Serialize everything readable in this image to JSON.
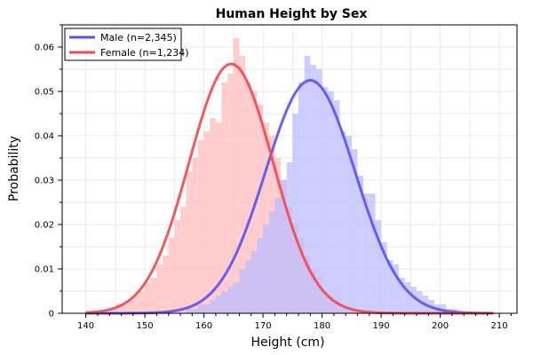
{
  "chart_data": {
    "type": "bar",
    "title": "Human Height by Sex",
    "xlabel": "Height (cm)",
    "ylabel": "Probability",
    "xlim": [
      136,
      213
    ],
    "ylim": [
      0,
      0.065
    ],
    "x_ticks": [
      140,
      150,
      160,
      170,
      180,
      190,
      200,
      210
    ],
    "y_ticks": [
      0,
      0.01,
      0.02,
      0.03,
      0.04,
      0.05,
      0.06
    ],
    "grid": true,
    "legend_position": "top-left",
    "bin_width": 1,
    "series": [
      {
        "name": "Male (n=2,345)",
        "color": "#5a50f2",
        "fill": "#bcbcff",
        "fit": {
          "type": "normal",
          "mean": 178,
          "sd": 7.6
        },
        "bins": [
          [
            157,
            0.001
          ],
          [
            158,
            0.001
          ],
          [
            159,
            0.002
          ],
          [
            160,
            0.002
          ],
          [
            161,
            0.003
          ],
          [
            162,
            0.004
          ],
          [
            163,
            0.005
          ],
          [
            164,
            0.006
          ],
          [
            165,
            0.007
          ],
          [
            166,
            0.01
          ],
          [
            167,
            0.012
          ],
          [
            168,
            0.014
          ],
          [
            169,
            0.017
          ],
          [
            170,
            0.02
          ],
          [
            171,
            0.023
          ],
          [
            172,
            0.026
          ],
          [
            173,
            0.03
          ],
          [
            174,
            0.034
          ],
          [
            175,
            0.045
          ],
          [
            176,
            0.052
          ],
          [
            177,
            0.058
          ],
          [
            178,
            0.056
          ],
          [
            179,
            0.055
          ],
          [
            180,
            0.051
          ],
          [
            181,
            0.05
          ],
          [
            182,
            0.048
          ],
          [
            183,
            0.041
          ],
          [
            184,
            0.04
          ],
          [
            185,
            0.037
          ],
          [
            186,
            0.031
          ],
          [
            187,
            0.027
          ],
          [
            188,
            0.027
          ],
          [
            189,
            0.021
          ],
          [
            190,
            0.016
          ],
          [
            191,
            0.012
          ],
          [
            192,
            0.011
          ],
          [
            193,
            0.008
          ],
          [
            194,
            0.007
          ],
          [
            195,
            0.006
          ],
          [
            196,
            0.005
          ],
          [
            197,
            0.004
          ],
          [
            198,
            0.003
          ],
          [
            199,
            0.002
          ],
          [
            200,
            0.002
          ],
          [
            201,
            0.001
          ],
          [
            202,
            0.001
          ]
        ]
      },
      {
        "name": "Female (n=1,234)",
        "color": "#f0484e",
        "fill": "#ffbcbc",
        "fit": {
          "type": "normal",
          "mean": 164.6,
          "sd": 7.1
        },
        "bins": [
          [
            144,
            0.001
          ],
          [
            145,
            0.002
          ],
          [
            146,
            0.002
          ],
          [
            147,
            0.003
          ],
          [
            148,
            0.004
          ],
          [
            149,
            0.005
          ],
          [
            150,
            0.007
          ],
          [
            151,
            0.008
          ],
          [
            152,
            0.011
          ],
          [
            153,
            0.013
          ],
          [
            154,
            0.017
          ],
          [
            155,
            0.021
          ],
          [
            156,
            0.024
          ],
          [
            157,
            0.032
          ],
          [
            158,
            0.035
          ],
          [
            159,
            0.039
          ],
          [
            160,
            0.041
          ],
          [
            161,
            0.044
          ],
          [
            162,
            0.043
          ],
          [
            163,
            0.052
          ],
          [
            164,
            0.054
          ],
          [
            165,
            0.062
          ],
          [
            166,
            0.058
          ],
          [
            167,
            0.052
          ],
          [
            168,
            0.05
          ],
          [
            169,
            0.047
          ],
          [
            170,
            0.043
          ],
          [
            171,
            0.04
          ],
          [
            172,
            0.035
          ],
          [
            173,
            0.03
          ],
          [
            174,
            0.024
          ],
          [
            175,
            0.02
          ],
          [
            176,
            0.017
          ],
          [
            177,
            0.013
          ],
          [
            178,
            0.01
          ],
          [
            179,
            0.008
          ],
          [
            180,
            0.005
          ],
          [
            181,
            0.004
          ],
          [
            182,
            0.003
          ],
          [
            183,
            0.002
          ],
          [
            184,
            0.001
          ],
          [
            185,
            0.001
          ]
        ]
      }
    ]
  }
}
